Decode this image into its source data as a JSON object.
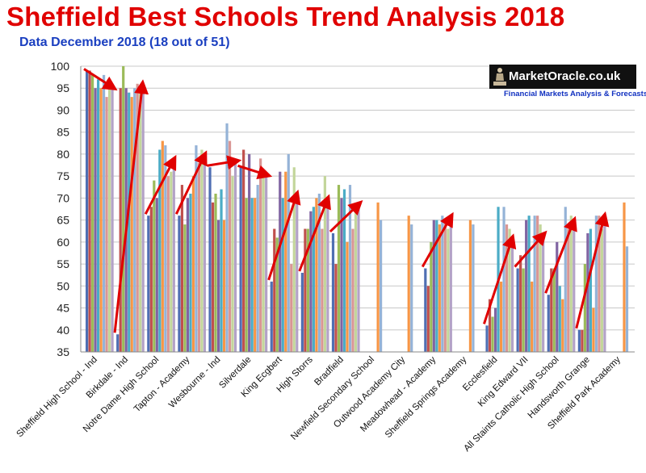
{
  "title": "Sheffield Best Schools Trend Analysis 2018",
  "subtitle": "Data December 2018 (18 out of 51)",
  "logo": {
    "name": "MarketOracle.co.uk",
    "tagline": "Financial Markets Analysis & Forecasts"
  },
  "colors": [
    "#4F6FB3",
    "#C0504D",
    "#9BBB59",
    "#8064A2",
    "#4BACC6",
    "#F79646",
    "#95B3D7",
    "#D99694",
    "#C3D69B",
    "#B3A2C7"
  ],
  "chart_data": {
    "type": "bar",
    "ylim": [
      35,
      100
    ],
    "yticks": [
      35,
      40,
      45,
      50,
      55,
      60,
      65,
      70,
      75,
      80,
      85,
      90,
      95,
      100
    ],
    "categories": [
      "Sheffield High School - Ind",
      "Birkdale - Ind",
      "Notre Dame High School",
      "Tapton - Academy",
      "Wesbourne - Ind",
      "Silverdale",
      "King Ecgbert",
      "High Storrs",
      "Bradfield",
      "Newfield Secondary School",
      "Outwood Academy City",
      "Meadowhead - Academy",
      "Sheffield Springs Academy",
      "Ecclesfield",
      "King Edward VII",
      "All Staints Catholic High School",
      "Handsworth Grange",
      "Sheffield Park Academy"
    ],
    "series_values": [
      [
        99,
        99,
        98,
        95,
        97,
        95,
        98,
        93,
        95,
        95
      ],
      [
        39,
        95,
        100,
        95,
        94,
        93,
        95,
        96,
        94,
        95
      ],
      [
        66,
        68,
        74,
        70,
        81,
        83,
        82,
        75,
        76,
        78
      ],
      [
        66,
        73,
        64,
        70,
        71,
        75,
        82,
        78,
        81,
        79
      ],
      [
        77,
        69,
        71,
        65,
        72,
        65,
        87,
        83,
        75,
        78
      ],
      [
        77,
        81,
        70,
        80,
        70,
        70,
        73,
        79,
        76,
        75
      ],
      [
        51,
        63,
        61,
        76,
        70,
        76,
        80,
        55,
        77,
        70
      ],
      [
        53,
        63,
        63,
        67,
        68,
        70,
        71,
        63,
        75,
        69
      ],
      [
        62,
        55,
        73,
        70,
        72,
        60,
        73,
        63,
        67,
        68
      ],
      [
        null,
        null,
        null,
        null,
        null,
        69,
        65,
        null,
        null,
        null
      ],
      [
        null,
        null,
        null,
        null,
        null,
        66,
        64,
        null,
        null,
        null
      ],
      [
        54,
        50,
        60,
        65,
        65,
        64,
        66,
        65,
        63,
        65
      ],
      [
        null,
        null,
        null,
        null,
        null,
        65,
        64,
        null,
        null,
        null
      ],
      [
        41,
        47,
        43,
        45,
        68,
        51,
        68,
        64,
        63,
        60
      ],
      [
        54,
        57,
        54,
        65,
        66,
        51,
        66,
        66,
        64,
        61
      ],
      [
        48,
        54,
        54,
        60,
        50,
        47,
        68,
        63,
        66,
        64
      ],
      [
        40,
        40,
        55,
        62,
        63,
        45,
        66,
        66,
        63,
        65
      ],
      [
        null,
        null,
        null,
        null,
        null,
        69,
        59,
        null,
        null,
        null
      ]
    ]
  }
}
